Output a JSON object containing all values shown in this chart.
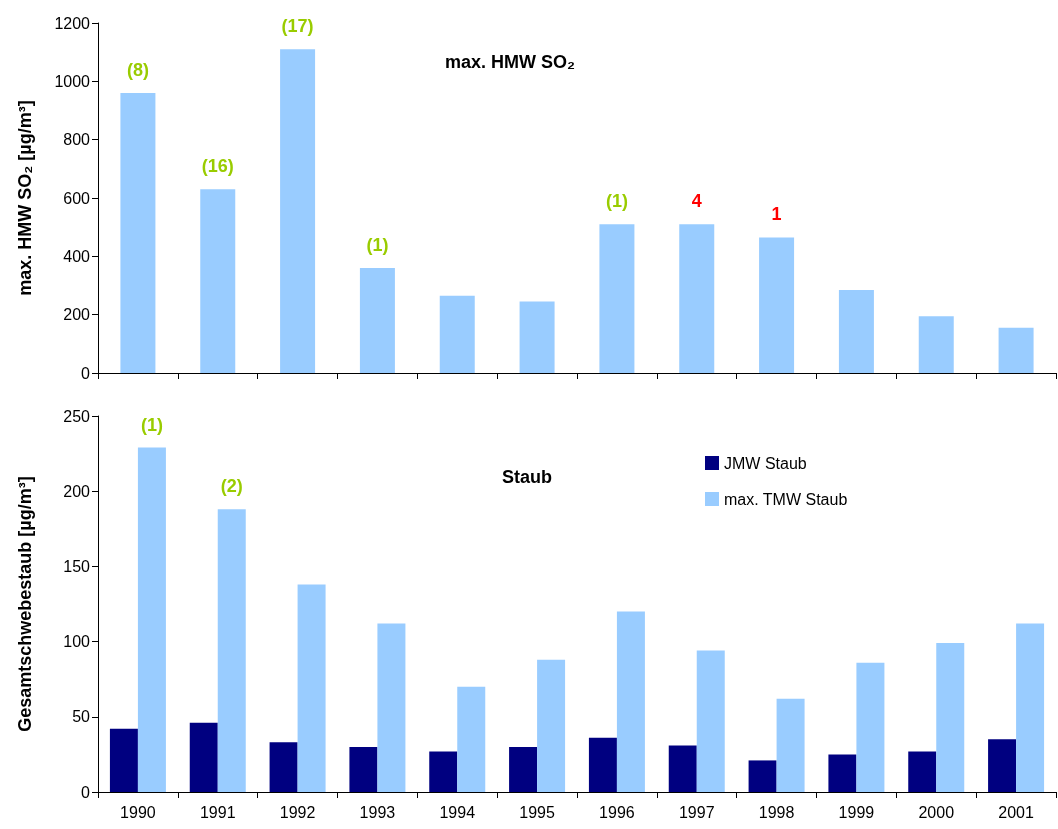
{
  "chart_data": [
    {
      "type": "bar",
      "title": "max. HMW SO₂",
      "ylabel": "max. HMW SO₂ [µg/m³]",
      "categories": [
        "1990",
        "1991",
        "1992",
        "1993",
        "1994",
        "1995",
        "1996",
        "1997",
        "1998",
        "1999",
        "2000",
        "2001"
      ],
      "series": [
        {
          "color": "#99ccff",
          "values": [
            960,
            630,
            1110,
            360,
            265,
            245,
            510,
            510,
            465,
            285,
            195,
            155
          ]
        }
      ],
      "ylim": [
        0,
        1200
      ],
      "yticks": [
        0,
        200,
        400,
        600,
        800,
        1000,
        1200
      ],
      "grid": false,
      "legend": false,
      "tick_labels": "y",
      "annotations": [
        {
          "text": "(8)",
          "x": "1990",
          "y": 960
        },
        {
          "text": "(16)",
          "x": "1991",
          "y": 630
        },
        {
          "text": "(17)",
          "x": "1992",
          "y": 1110
        },
        {
          "text": "(1)",
          "x": "1993",
          "y": 360
        },
        {
          "text": "(1)",
          "x": "1996",
          "y": 510
        },
        {
          "text": "4",
          "x": "1997",
          "y": 510
        },
        {
          "text": "1",
          "x": "1998",
          "y": 465
        }
      ]
    },
    {
      "type": "bar",
      "title": "Staub",
      "ylabel": "Gesamtschwebestaub [µg/m³]",
      "categories": [
        "1990",
        "1991",
        "1992",
        "1993",
        "1994",
        "1995",
        "1996",
        "1997",
        "1998",
        "1999",
        "2000",
        "2001"
      ],
      "series": [
        {
          "name": "JMW Staub",
          "color": "#000080",
          "values": [
            42,
            46,
            33,
            30,
            27,
            30,
            36,
            31,
            21,
            25,
            27,
            35
          ]
        },
        {
          "name": "max. TMW Staub",
          "color": "#99ccff",
          "values": [
            229,
            188,
            138,
            112,
            70,
            88,
            120,
            94,
            62,
            86,
            99,
            112
          ]
        }
      ],
      "ylim": [
        0,
        250
      ],
      "yticks": [
        0,
        50,
        100,
        150,
        200,
        250
      ],
      "grid": false,
      "legend": "top right",
      "annotations": [
        {
          "text": "(1)",
          "x": "1990",
          "y": 229
        },
        {
          "text": "(2)",
          "x": "1991",
          "y": 188
        }
      ]
    }
  ]
}
